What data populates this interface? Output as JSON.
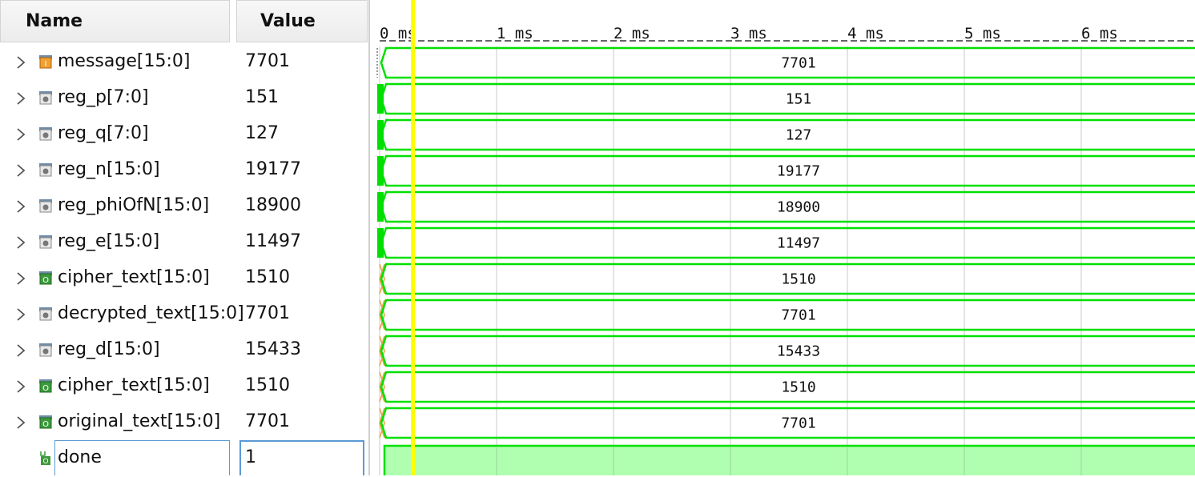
{
  "columns": {
    "name": "Name",
    "value": "Value"
  },
  "signals": [
    {
      "name": "message[15:0]",
      "value": "7701",
      "icon": "input-bus-icon",
      "kind": "bus"
    },
    {
      "name": "reg_p[7:0]",
      "value": "151",
      "icon": "register-bus-icon",
      "kind": "bus"
    },
    {
      "name": "reg_q[7:0]",
      "value": "127",
      "icon": "register-bus-icon",
      "kind": "bus"
    },
    {
      "name": "reg_n[15:0]",
      "value": "19177",
      "icon": "register-bus-icon",
      "kind": "bus"
    },
    {
      "name": "reg_phiOfN[15:0]",
      "value": "18900",
      "icon": "register-bus-icon",
      "kind": "bus"
    },
    {
      "name": "reg_e[15:0]",
      "value": "11497",
      "icon": "register-bus-icon",
      "kind": "bus"
    },
    {
      "name": "cipher_text[15:0]",
      "value": "1510",
      "icon": "output-bus-icon",
      "kind": "bus"
    },
    {
      "name": "decrypted_text[15:0]",
      "value": "7701",
      "icon": "register-bus-icon",
      "kind": "bus"
    },
    {
      "name": "reg_d[15:0]",
      "value": "15433",
      "icon": "register-bus-icon",
      "kind": "bus"
    },
    {
      "name": "cipher_text[15:0]",
      "value": "1510",
      "icon": "output-bus-icon",
      "kind": "bus"
    },
    {
      "name": "original_text[15:0]",
      "value": "7701",
      "icon": "output-bus-icon",
      "kind": "bus"
    },
    {
      "name": "done",
      "value": "1",
      "icon": "output-bit-icon",
      "kind": "bit"
    }
  ],
  "timeline": {
    "ticks": [
      "0 ms",
      "1 ms",
      "2 ms",
      "3 ms",
      "4 ms",
      "5 ms",
      "6 ms"
    ]
  },
  "cursor": {
    "time_ms": 0.25,
    "color": "#ffff00"
  },
  "colors": {
    "wave": "#00e000",
    "bit_fill": "#b0ffb0",
    "transition": "#e8a040",
    "grid": "#c8c8c8"
  }
}
